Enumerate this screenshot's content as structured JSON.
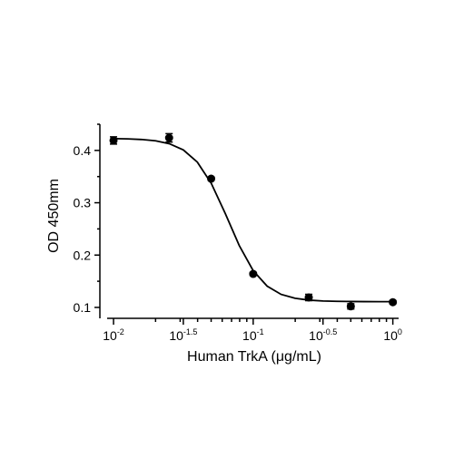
{
  "chart_data": {
    "type": "scatter",
    "x_label": "Human TrkA (μg/mL)",
    "y_label": "OD 450mm",
    "x": [
      0.01,
      0.025,
      0.05,
      0.1,
      0.25,
      0.5,
      1
    ],
    "values": [
      0.419,
      0.424,
      0.346,
      0.164,
      0.119,
      0.102,
      0.11
    ],
    "errors": [
      0.007,
      0.008,
      0.003,
      0.003,
      0.006,
      0.005,
      0.003
    ],
    "color": "#000000",
    "curve": {
      "x": [
        0.01,
        0.0126,
        0.0158,
        0.02,
        0.0251,
        0.0316,
        0.0398,
        0.0501,
        0.0631,
        0.0794,
        0.1,
        0.1259,
        0.1585,
        0.1995,
        0.2512,
        0.3162,
        0.3981,
        0.5012,
        0.631,
        0.7943,
        1
      ],
      "values": [
        0.4226,
        0.4221,
        0.4209,
        0.4184,
        0.4128,
        0.401,
        0.3777,
        0.3371,
        0.2796,
        0.2184,
        0.1702,
        0.1406,
        0.1249,
        0.1174,
        0.1139,
        0.1123,
        0.1116,
        0.1113,
        0.1111,
        0.111,
        0.111
      ]
    },
    "xscale": "log",
    "xlim": [
      0.009,
      1.1
    ],
    "ylim": [
      0.08,
      0.45
    ],
    "xticks": [
      {
        "value": 0.01,
        "label": "10",
        "exponent": "-2"
      },
      {
        "value": 0.0316,
        "label": "10",
        "exponent": "-1.5"
      },
      {
        "value": 0.1,
        "label": "10",
        "exponent": "-1"
      },
      {
        "value": 0.3162,
        "label": "10",
        "exponent": "-0.5"
      },
      {
        "value": 1,
        "label": "10",
        "exponent": "0"
      }
    ],
    "xminor_ticks": [
      0.02,
      0.03,
      0.04,
      0.05,
      0.06,
      0.07,
      0.08,
      0.09,
      0.2,
      0.3,
      0.4,
      0.5,
      0.6,
      0.7,
      0.8,
      0.9
    ],
    "yticks": [
      0.1,
      0.2,
      0.3,
      0.4
    ],
    "yminor_ticks": [
      0.15,
      0.25,
      0.35,
      0.45
    ]
  }
}
